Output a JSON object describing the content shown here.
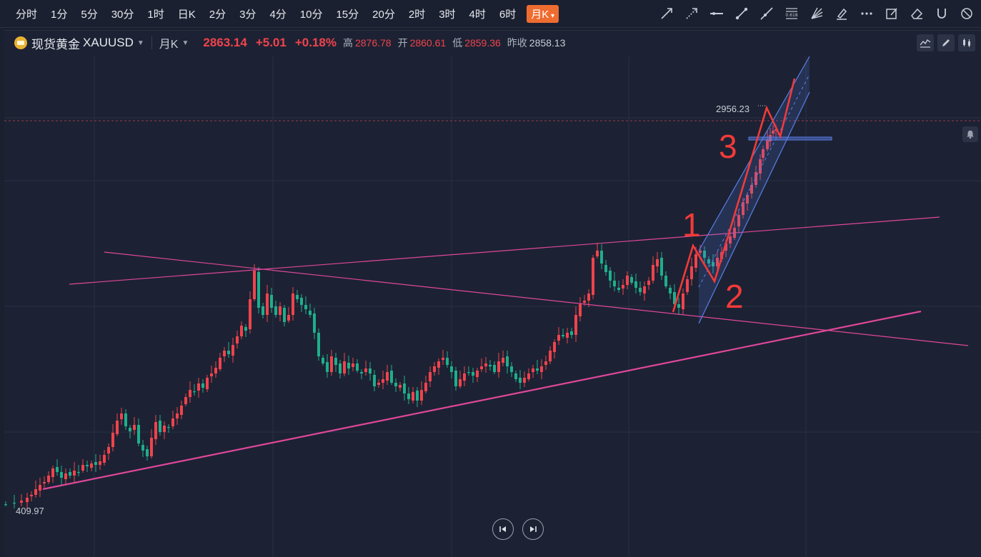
{
  "toolbar": {
    "intervals": [
      "分时",
      "1分",
      "5分",
      "30分",
      "1时",
      "日K",
      "2分",
      "3分",
      "4分",
      "10分",
      "15分",
      "20分",
      "2时",
      "3时",
      "4时",
      "6时",
      "月K"
    ],
    "active_interval": "月K",
    "tool_icons": [
      "trend-line-icon",
      "ray-line-icon",
      "horizontal-line-icon",
      "segment-icon",
      "extended-line-icon",
      "fibonacci-icon",
      "fan-icon",
      "highlighter-icon",
      "more-icon",
      "note-icon",
      "eraser-icon",
      "magnet-icon",
      "clear-icon"
    ],
    "fib_label": "0.618"
  },
  "symbol": {
    "name": "现货黄金",
    "code": "XAUUSD",
    "period": "月K",
    "price": "2863.14",
    "change": "+5.01",
    "change_pct": "+0.18%",
    "high_label": "高",
    "high": "2876.78",
    "open_label": "开",
    "open": "2860.61",
    "low_label": "低",
    "low": "2859.36",
    "prev_close_label": "昨收",
    "prev_close": "2858.13"
  },
  "colors": {
    "up": "#f0434d",
    "down": "#1fae8c",
    "trendline": "#e0479a",
    "annotation": "#f23a3a",
    "channel": "#5a7ee8"
  },
  "chart_data": {
    "type": "candlestick",
    "period": "monthly",
    "max_label": "2956.23",
    "min_label": "409.97",
    "annotations": [
      "1",
      "2",
      "3"
    ]
  }
}
